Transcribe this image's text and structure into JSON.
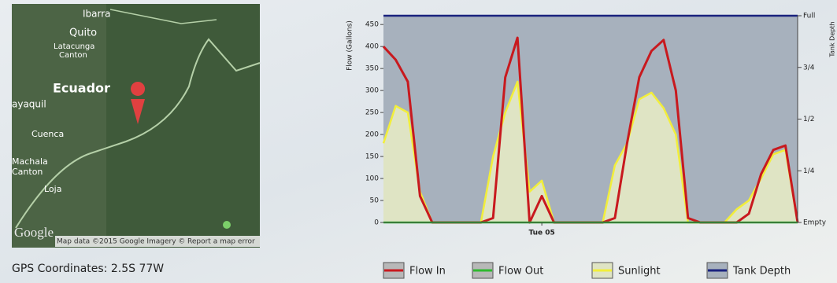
{
  "map": {
    "labels": [
      "Ibarra",
      "Quito",
      "Latacunga",
      "Canton",
      "Ecuador",
      "ayaquil",
      "Cuenca",
      "Machala",
      "Canton",
      "Loja"
    ],
    "logo": "Google",
    "attribution": "Map data ©2015 Google Imagery ©",
    "report": "Report a map error"
  },
  "gps": "GPS Coordinates: 2.5S 77W",
  "chart_data": {
    "type": "line",
    "ylabel": "Flow (Gallons)",
    "y2label": "Tank Depth",
    "categories": [
      null,
      null,
      null,
      null,
      null,
      null,
      null,
      null,
      null,
      null,
      null,
      null,
      null,
      "Tue 05",
      null,
      null,
      null,
      null,
      null,
      null,
      null,
      null,
      null,
      null,
      null,
      null,
      null,
      null,
      null,
      null,
      null,
      null,
      null,
      null,
      null
    ],
    "ylim": [
      0,
      470
    ],
    "yticks": [
      0,
      50,
      100,
      150,
      200,
      250,
      300,
      350,
      400,
      450
    ],
    "y2lim": [
      0,
      1
    ],
    "y2ticks": [
      {
        "value": 0,
        "label": "Empty"
      },
      {
        "value": 0.25,
        "label": "1/4"
      },
      {
        "value": 0.5,
        "label": "1/2"
      },
      {
        "value": 0.75,
        "label": "3/4"
      },
      {
        "value": 1,
        "label": "Full"
      }
    ],
    "series": [
      {
        "name": "Flow In",
        "color": "#c8191e",
        "values": [
          400,
          370,
          320,
          60,
          0,
          0,
          0,
          0,
          0,
          10,
          330,
          420,
          0,
          60,
          0,
          0,
          0,
          0,
          0,
          10,
          180,
          330,
          390,
          415,
          300,
          10,
          0,
          0,
          0,
          0,
          20,
          110,
          165,
          175,
          0
        ]
      },
      {
        "name": "Flow Out",
        "color": "#2fb82f",
        "values": [
          0,
          0,
          0,
          0,
          0,
          0,
          0,
          0,
          0,
          0,
          0,
          0,
          0,
          0,
          0,
          0,
          0,
          0,
          0,
          0,
          0,
          0,
          0,
          0,
          0,
          0,
          0,
          0,
          0,
          0,
          0,
          0,
          0,
          0,
          0
        ]
      },
      {
        "name": "Sunlight",
        "color": "#f2ee3a",
        "fill": "#dfe4c4",
        "values": [
          180,
          265,
          250,
          70,
          0,
          0,
          0,
          0,
          0,
          150,
          250,
          320,
          70,
          95,
          0,
          0,
          0,
          0,
          0,
          130,
          180,
          280,
          295,
          260,
          200,
          0,
          0,
          0,
          0,
          30,
          50,
          100,
          155,
          165,
          0
        ]
      },
      {
        "name": "Tank Depth",
        "color": "#1a237e",
        "fill": "#a7b1bd",
        "axis": "y2",
        "values": [
          1,
          1,
          1,
          1,
          1,
          1,
          1,
          1,
          1,
          1,
          1,
          1,
          1,
          1,
          1,
          1,
          1,
          1,
          1,
          1,
          1,
          1,
          1,
          1,
          1,
          1,
          1,
          1,
          1,
          1,
          1,
          1,
          1,
          1,
          1
        ]
      }
    ]
  }
}
